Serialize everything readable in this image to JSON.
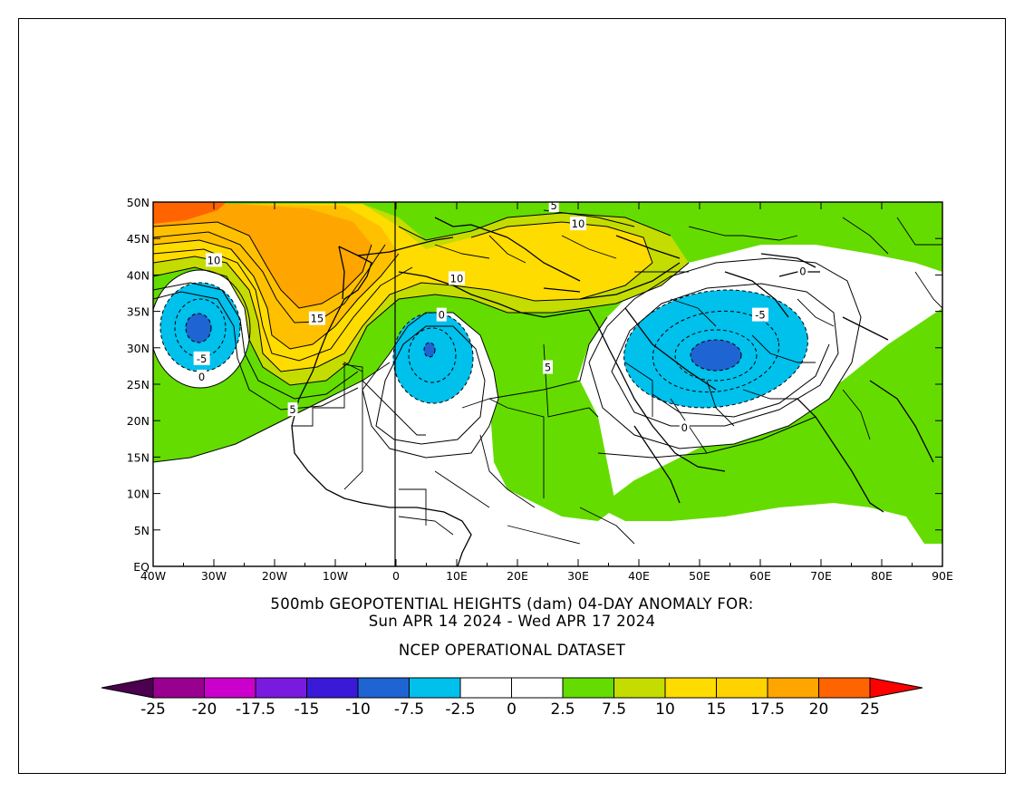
{
  "title": {
    "line1": "500mb GEOPOTENTIAL HEIGHTS (dam)    04-DAY ANOMALY FOR:",
    "line2": "Sun APR 14 2024 - Wed APR 17 2024",
    "dataset": "NCEP OPERATIONAL DATASET"
  },
  "axes": {
    "lon_labels": [
      "40W",
      "30W",
      "20W",
      "10W",
      "0",
      "10E",
      "20E",
      "30E",
      "40E",
      "50E",
      "60E",
      "70E",
      "80E",
      "90E"
    ],
    "lat_labels": [
      "EQ",
      "5N",
      "10N",
      "15N",
      "20N",
      "25N",
      "30N",
      "35N",
      "40N",
      "45N",
      "50N"
    ],
    "lon_range": [
      -40,
      90
    ],
    "lat_range": [
      0,
      50
    ]
  },
  "colorbar": {
    "labels": [
      "-25",
      "-20",
      "-17.5",
      "-15",
      "-10",
      "-7.5",
      "-2.5",
      "0",
      "2.5",
      "7.5",
      "10",
      "15",
      "17.5",
      "20",
      "25"
    ],
    "colors": [
      "#4b0050",
      "#9a0090",
      "#cc00cc",
      "#7a1adf",
      "#3a1ad8",
      "#1e64d2",
      "#00c0ec",
      "#ffffff",
      "#ffffff",
      "#64dc00",
      "#c4dc00",
      "#ffdc00",
      "#ffd200",
      "#ffa500",
      "#ff6400",
      "#ff0000"
    ]
  },
  "contour_labels": [
    {
      "text": "5",
      "lon": 26,
      "lat": 49.5
    },
    {
      "text": "10",
      "lon": 30,
      "lat": 47
    },
    {
      "text": "10",
      "lon": -30,
      "lat": 42
    },
    {
      "text": "10",
      "lon": 10,
      "lat": 39.5
    },
    {
      "text": "15",
      "lon": -13,
      "lat": 34
    },
    {
      "text": "0",
      "lon": 7.5,
      "lat": 34.5
    },
    {
      "text": "0",
      "lon": 67,
      "lat": 40.5
    },
    {
      "text": "-5",
      "lon": 60,
      "lat": 34.5
    },
    {
      "text": "-5",
      "lon": -32,
      "lat": 28.5
    },
    {
      "text": "0",
      "lon": -32,
      "lat": 26
    },
    {
      "text": "5",
      "lon": 25,
      "lat": 27.3
    },
    {
      "text": "5",
      "lon": -17,
      "lat": 21.5
    },
    {
      "text": "0",
      "lon": 47.5,
      "lat": 19
    }
  ],
  "anomaly_features": [
    {
      "kind": "low",
      "lon": -32,
      "lat": 32.5,
      "core": "-10"
    },
    {
      "kind": "low",
      "lon": 5,
      "lat": 30,
      "core": "-10"
    },
    {
      "kind": "low",
      "lon": 54,
      "lat": 29,
      "core": "-10"
    },
    {
      "kind": "high",
      "lon": -15,
      "lat": 40,
      "core": "20"
    },
    {
      "kind": "high",
      "lon": -40,
      "lat": 48,
      "core": "25"
    },
    {
      "kind": "high",
      "lon": 30,
      "lat": 42,
      "core": "15"
    }
  ]
}
